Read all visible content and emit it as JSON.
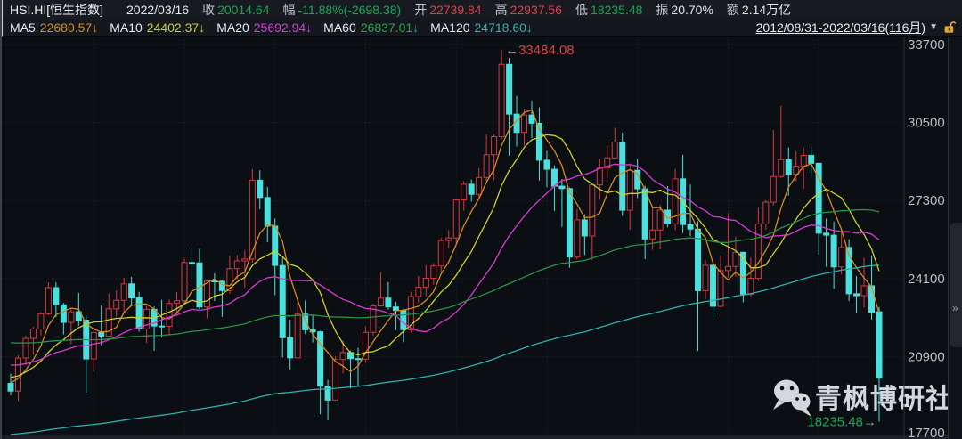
{
  "palette": {
    "up": "#e14045",
    "dn": "#17a857",
    "candle_up": "#d8383c",
    "candle_dn": "#4ae0dd",
    "bg": "#0b0e13",
    "axis_text": "#b9bec6",
    "axis_line": "#2c3038",
    "annotation_arrow": "#9aa0a8",
    "watermark": "#d4d7db",
    "bottom_strip": "#1c1f25",
    "strip_bg": "#0e1116",
    "strip_tab": "#23262c"
  },
  "header": {
    "symbol": "HSI.HI[恒生指数]",
    "date": "2022/03/16",
    "fields": [
      {
        "label": "收",
        "value": "20014.64"
      },
      {
        "label": "幅",
        "value": "-11.88%(-2698.38)"
      },
      {
        "label": "开",
        "value": "22739.84"
      },
      {
        "label": "高",
        "value": "22937.56"
      },
      {
        "label": "低",
        "value": "18235.48"
      },
      {
        "label": "振",
        "value": "20.70%"
      },
      {
        "label": "额",
        "value": "2.14万亿"
      }
    ],
    "range": "2012/08/31-2022/03/16(116月)",
    "caret": "▼"
  },
  "ma_legend": [
    {
      "label": "MA5",
      "value": "22680.57",
      "arrow": "↓",
      "color": "#d78b1f"
    },
    {
      "label": "MA10",
      "value": "24402.37",
      "arrow": "↓",
      "color": "#cdd02b"
    },
    {
      "label": "MA20",
      "value": "25692.94",
      "arrow": "↓",
      "color": "#d63bd4"
    },
    {
      "label": "MA60",
      "value": "26837.01",
      "arrow": "↓",
      "color": "#2aa34a"
    },
    {
      "label": "MA120",
      "value": "24718.60",
      "arrow": "↓",
      "color": "#2fb0ac"
    }
  ],
  "watermark": {
    "icon": "wechat-icon",
    "text": "青枫博研社"
  },
  "right_strip": {
    "expander": "»"
  },
  "chart_data": {
    "type": "candlestick",
    "title": "HSI.HI 恒生指数 2012/08-2022/03 monthly candles with MA overlays",
    "y_ticks": [
      33700,
      30500,
      27300,
      24100,
      20900,
      17700
    ],
    "y_range": [
      17700,
      33700
    ],
    "grid": "dotted",
    "candles": [
      [
        19800,
        20200,
        19300,
        19482
      ],
      [
        19482,
        20950,
        19076,
        20840
      ],
      [
        20840,
        21760,
        20555,
        21641
      ],
      [
        21641,
        22111,
        20978,
        22030
      ],
      [
        22030,
        22718,
        21762,
        22657
      ],
      [
        22657,
        23945,
        22590,
        23729
      ],
      [
        23729,
        23944,
        22519,
        23020
      ],
      [
        23020,
        23103,
        21807,
        22300
      ],
      [
        22300,
        22899,
        21409,
        22737
      ],
      [
        22737,
        23512,
        22160,
        22392
      ],
      [
        22392,
        22576,
        19426,
        20803
      ],
      [
        20803,
        22088,
        20286,
        21883
      ],
      [
        21883,
        23000,
        21360,
        21731
      ],
      [
        21731,
        23488,
        21706,
        22859
      ],
      [
        22859,
        23609,
        22528,
        23206
      ],
      [
        23206,
        24132,
        22684,
        23881
      ],
      [
        23881,
        24167,
        22991,
        23306
      ],
      [
        23306,
        23557,
        21916,
        22035
      ],
      [
        22035,
        23052,
        21463,
        22837
      ],
      [
        22837,
        22953,
        21137,
        22151
      ],
      [
        22151,
        23225,
        21681,
        22134
      ],
      [
        22134,
        23240,
        21763,
        23082
      ],
      [
        23082,
        23553,
        22660,
        23190
      ],
      [
        23190,
        24916,
        23033,
        24757
      ],
      [
        24757,
        25363,
        24077,
        24742
      ],
      [
        24742,
        25318,
        22844,
        22933
      ],
      [
        22933,
        24063,
        22459,
        23998
      ],
      [
        23998,
        24313,
        23175,
        23987
      ],
      [
        23987,
        24027,
        22529,
        23605
      ],
      [
        23605,
        25031,
        23480,
        24507
      ],
      [
        24507,
        25071,
        24062,
        24823
      ],
      [
        24823,
        25275,
        23717,
        24901
      ],
      [
        24901,
        28589,
        24752,
        28133
      ],
      [
        28133,
        28543,
        26942,
        27424
      ],
      [
        27424,
        27862,
        25586,
        26250
      ],
      [
        26250,
        26566,
        23416,
        24636
      ],
      [
        24636,
        24953,
        20865,
        21671
      ],
      [
        21671,
        22413,
        20368,
        20846
      ],
      [
        20846,
        23240,
        20820,
        22640
      ],
      [
        22640,
        23200,
        21822,
        21996
      ],
      [
        21996,
        22600,
        21479,
        21914
      ],
      [
        21914,
        21958,
        18534,
        19683
      ],
      [
        19683,
        19941,
        18278,
        19112
      ],
      [
        19112,
        20922,
        19112,
        20777
      ],
      [
        20777,
        21557,
        20205,
        21067
      ],
      [
        21067,
        21145,
        19595,
        20815
      ],
      [
        20815,
        21268,
        19662,
        20794
      ],
      [
        20794,
        22132,
        20650,
        21891
      ],
      [
        21891,
        23058,
        21760,
        22977
      ],
      [
        22977,
        24364,
        22949,
        23297
      ],
      [
        23297,
        23953,
        22820,
        22935
      ],
      [
        22935,
        23147,
        21970,
        22790
      ],
      [
        22790,
        22861,
        21488,
        22001
      ],
      [
        22001,
        23559,
        21883,
        23361
      ],
      [
        23361,
        24201,
        23112,
        23741
      ],
      [
        23741,
        24656,
        23380,
        24112
      ],
      [
        24112,
        24736,
        23847,
        24615
      ],
      [
        24615,
        25766,
        24366,
        25661
      ],
      [
        25661,
        26091,
        25345,
        25765
      ],
      [
        25765,
        27340,
        25495,
        27324
      ],
      [
        27324,
        28094,
        26883,
        27970
      ],
      [
        27970,
        28159,
        27255,
        27554
      ],
      [
        27554,
        28626,
        27424,
        28246
      ],
      [
        28246,
        30003,
        28110,
        29177
      ],
      [
        29177,
        30028,
        28135,
        29919
      ],
      [
        29919,
        33484,
        29811,
        32887
      ],
      [
        32887,
        33154,
        29129,
        30845
      ],
      [
        30845,
        31594,
        29518,
        30093
      ],
      [
        30093,
        31073,
        29544,
        30808
      ],
      [
        30808,
        31404,
        29862,
        30469
      ],
      [
        30469,
        31122,
        28120,
        28955
      ],
      [
        28955,
        29333,
        27844,
        28583
      ],
      [
        28583,
        28746,
        26871,
        27889
      ],
      [
        27889,
        28183,
        26220,
        27789
      ],
      [
        27789,
        27835,
        24541,
        24980
      ],
      [
        24980,
        26945,
        24896,
        26507
      ],
      [
        26507,
        26741,
        25064,
        25846
      ],
      [
        25846,
        28016,
        24863,
        27942
      ],
      [
        27942,
        29010,
        27331,
        28633
      ],
      [
        28633,
        29562,
        28207,
        29051
      ],
      [
        29051,
        30280,
        29011,
        29699
      ],
      [
        29699,
        30081,
        26672,
        26901
      ],
      [
        26901,
        28827,
        26106,
        28543
      ],
      [
        28543,
        29008,
        27398,
        27778
      ],
      [
        27778,
        27909,
        24899,
        25725
      ],
      [
        25725,
        27000,
        25279,
        26092
      ],
      [
        26092,
        27130,
        25300,
        26907
      ],
      [
        26907,
        27895,
        26203,
        26346
      ],
      [
        26346,
        28608,
        26082,
        28190
      ],
      [
        28190,
        29175,
        25960,
        26313
      ],
      [
        26313,
        27958,
        25835,
        26130
      ],
      [
        26130,
        26452,
        21139,
        23603
      ],
      [
        23603,
        24856,
        23248,
        24644
      ],
      [
        24644,
        24656,
        22520,
        22961
      ],
      [
        22961,
        25052,
        22920,
        24427
      ],
      [
        24427,
        26782,
        24128,
        24595
      ],
      [
        24595,
        25819,
        24170,
        25177
      ],
      [
        25177,
        25203,
        23124,
        23459
      ],
      [
        23459,
        24953,
        23371,
        24107
      ],
      [
        24107,
        27014,
        23993,
        26341
      ],
      [
        26341,
        27314,
        26097,
        27231
      ],
      [
        27231,
        30191,
        27106,
        28284
      ],
      [
        28284,
        31183,
        28222,
        28980
      ],
      [
        28980,
        29476,
        27505,
        28378
      ],
      [
        28378,
        29320,
        28091,
        28705
      ],
      [
        28705,
        29477,
        27782,
        29152
      ],
      [
        29152,
        29483,
        28301,
        28828
      ],
      [
        28828,
        28855,
        25089,
        25961
      ],
      [
        25961,
        26560,
        24581,
        25879
      ],
      [
        25879,
        26442,
        23681,
        24576
      ],
      [
        24576,
        26095,
        24264,
        25377
      ],
      [
        25377,
        25713,
        23175,
        23475
      ],
      [
        23475,
        24205,
        22665,
        23398
      ],
      [
        23398,
        24952,
        22907,
        23802
      ],
      [
        23802,
        25051,
        22417,
        22713
      ],
      [
        22739.84,
        22937.56,
        18235.48,
        20014.64
      ]
    ],
    "ma": [
      {
        "name": "MA5",
        "window": 5,
        "seed": 19900,
        "color": "#d78b1f"
      },
      {
        "name": "MA10",
        "window": 10,
        "seed": 20100,
        "color": "#cdd02b"
      },
      {
        "name": "MA20",
        "window": 20,
        "seed": 20600,
        "color": "#d63bd4"
      },
      {
        "name": "MA60",
        "window": 60,
        "seed": 21500,
        "color": "#2a9146"
      },
      {
        "name": "MA120",
        "window": 120,
        "seed": 17690,
        "color": "#2fb0ac"
      }
    ],
    "annotations": {
      "high": {
        "index": 65,
        "price": 33484.08,
        "text": "33484.08",
        "arrow": "←"
      },
      "low": {
        "index": 115,
        "price": 18235.48,
        "text": "18235.48",
        "arrow": "→"
      }
    }
  }
}
